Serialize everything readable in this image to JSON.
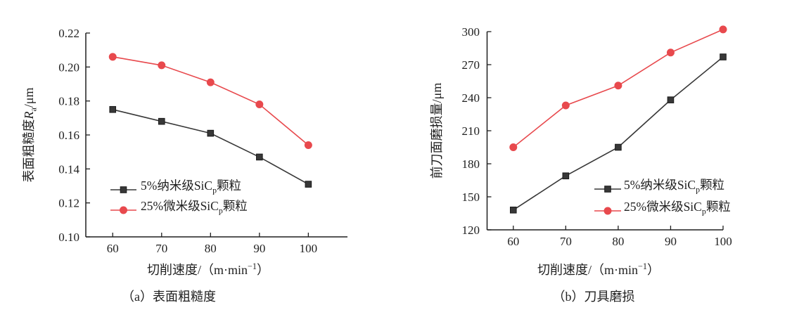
{
  "figure": {
    "background": "#ffffff",
    "text_color": "#1f1f1f",
    "axis_color": "#1f1f1f"
  },
  "chart_data": [
    {
      "type": "line",
      "panel": "a",
      "title": "（a）表面粗糙度",
      "xlabel": "切削速度/（m·min−1）",
      "ylabel": "表面粗糙度Ra/μm",
      "xlabel_rich": [
        {
          "t": "切削速度/（m·min"
        },
        {
          "t": "−1",
          "sup": true
        },
        {
          "t": "）"
        }
      ],
      "ylabel_rich": [
        {
          "t": "表面粗糙度"
        },
        {
          "t": "R",
          "i": true
        },
        {
          "t": "a",
          "sub": true
        },
        {
          "t": "/μm"
        }
      ],
      "x": [
        60,
        70,
        80,
        90,
        100
      ],
      "xticks": [
        60,
        70,
        80,
        90,
        100
      ],
      "ylim": [
        0.1,
        0.22
      ],
      "ytick_labels": [
        "0.10",
        "0.12",
        "0.14",
        "0.16",
        "0.18",
        "0.20",
        "0.22"
      ],
      "grid": false,
      "legend_position": "bottom-left",
      "series": [
        {
          "name": "5%纳米级SiCp颗粒",
          "name_rich": [
            {
              "t": "5%纳米级SiC"
            },
            {
              "t": "p",
              "sub": true
            },
            {
              "t": "颗粒"
            }
          ],
          "marker": "square",
          "color": "#383838",
          "values": [
            0.175,
            0.168,
            0.161,
            0.147,
            0.131
          ]
        },
        {
          "name": "25%微米级SiCp颗粒",
          "name_rich": [
            {
              "t": "25%微米级SiC"
            },
            {
              "t": "p",
              "sub": true
            },
            {
              "t": "颗粒"
            }
          ],
          "marker": "circle",
          "color": "#e8494d",
          "values": [
            0.206,
            0.201,
            0.191,
            0.178,
            0.154
          ]
        }
      ]
    },
    {
      "type": "line",
      "panel": "b",
      "title": "（b）刀具磨损",
      "xlabel": "切削速度/（m·min−1）",
      "ylabel": "前刀面磨损量/μm",
      "xlabel_rich": [
        {
          "t": "切削速度/（m·min"
        },
        {
          "t": "−1",
          "sup": true
        },
        {
          "t": "）"
        }
      ],
      "ylabel_rich": [
        {
          "t": "前刀面磨损量/μm"
        }
      ],
      "x": [
        60,
        70,
        80,
        90,
        100
      ],
      "xticks": [
        60,
        70,
        80,
        90,
        100
      ],
      "ylim": [
        120,
        300
      ],
      "ytick_labels": [
        "120",
        "150",
        "180",
        "210",
        "240",
        "270",
        "300"
      ],
      "grid": false,
      "legend_position": "bottom-right",
      "series": [
        {
          "name": "5%纳米级SiCp颗粒",
          "name_rich": [
            {
              "t": "5%纳米级SiC"
            },
            {
              "t": "p",
              "sub": true
            },
            {
              "t": "颗粒"
            }
          ],
          "marker": "square",
          "color": "#383838",
          "values": [
            138,
            169,
            195,
            238,
            277
          ]
        },
        {
          "name": "25%微米级SiCp颗粒",
          "name_rich": [
            {
              "t": "25%微米级SiC"
            },
            {
              "t": "p",
              "sub": true
            },
            {
              "t": "颗粒"
            }
          ],
          "marker": "circle",
          "color": "#e8494d",
          "values": [
            195,
            233,
            251,
            281,
            302
          ]
        }
      ]
    }
  ]
}
